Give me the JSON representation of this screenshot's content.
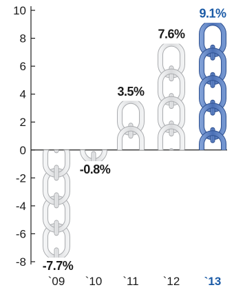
{
  "chart_data": {
    "type": "bar",
    "categories": [
      "`09",
      "`10",
      "`11",
      "`12",
      "`13"
    ],
    "values": [
      -7.7,
      -0.8,
      3.5,
      7.6,
      9.1
    ],
    "data_labels": [
      "-7.7%",
      "-0.8%",
      "3.5%",
      "7.6%",
      "9.1%"
    ],
    "highlight_index": 4,
    "ylim": [
      -8,
      10
    ],
    "yticks": [
      -8,
      -6,
      -4,
      -2,
      0,
      2,
      4,
      6,
      8,
      10
    ],
    "grid": false,
    "mark_style": "chain-links",
    "colors": {
      "default_link_fill": "#e2e3e5",
      "default_link_stroke": "#a9abae",
      "highlight_link_fill": "#5b7fc2",
      "highlight_link_stroke": "#2d4f8f",
      "highlight_text": "#1a5aa6",
      "axis": "#1a1a1a"
    }
  }
}
